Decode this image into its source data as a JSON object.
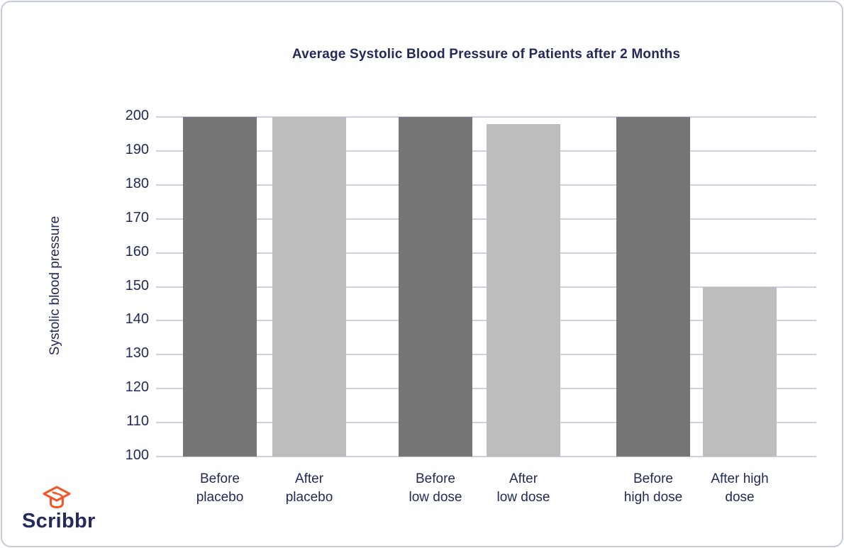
{
  "brand": {
    "name": "Scribbr"
  },
  "colors": {
    "navy": "#222a5b",
    "orange": "#f4562a",
    "bar_dark": "#767676",
    "bar_light": "#bdbdbd",
    "gridline": "#ccd1e3",
    "card_border": "#c5cadc"
  },
  "chart_data": {
    "type": "bar",
    "title": "Average Systolic Blood Pressure of Patients after 2 Months",
    "xlabel": "",
    "ylabel": "Systolic blood pressure",
    "ylim": [
      100,
      200
    ],
    "ytick_step": 10,
    "yticks": [
      100,
      110,
      120,
      130,
      140,
      150,
      160,
      170,
      180,
      190,
      200
    ],
    "grid": "horizontal",
    "legend": "none",
    "categories": [
      "Before placebo",
      "After placebo",
      "Before low dose",
      "After low dose",
      "Before high dose",
      "After high dose"
    ],
    "category_lines": [
      [
        "Before",
        "placebo"
      ],
      [
        "After",
        "placebo"
      ],
      [
        "Before",
        "low dose"
      ],
      [
        "After",
        "low dose"
      ],
      [
        "Before",
        "high dose"
      ],
      [
        "After high",
        "dose"
      ]
    ],
    "values": [
      200,
      200,
      200,
      198,
      200,
      150
    ],
    "bar_colors": [
      "#767676",
      "#bdbdbd",
      "#767676",
      "#bdbdbd",
      "#767676",
      "#bdbdbd"
    ]
  }
}
